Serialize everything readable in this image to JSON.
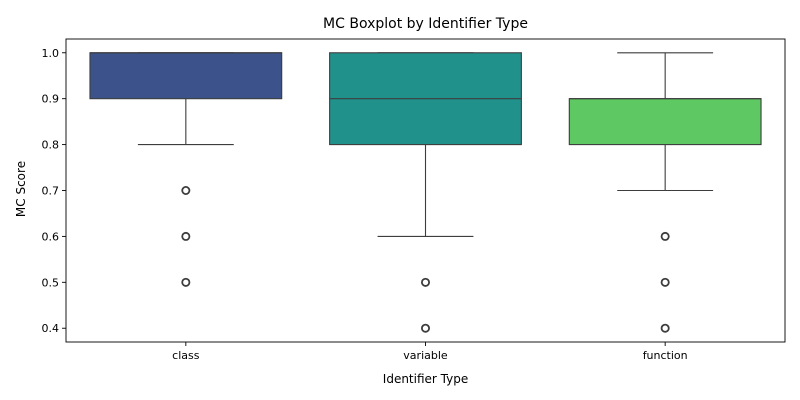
{
  "chart_data": {
    "type": "box",
    "title": "MC Boxplot by Identifier Type",
    "xlabel": "Identifier Type",
    "ylabel": "MC Score",
    "ylim": [
      0.37,
      1.03
    ],
    "yticks": [
      "0.4",
      "0.5",
      "0.6",
      "0.7",
      "0.8",
      "0.9",
      "1.0"
    ],
    "grid": false,
    "legend": "none",
    "categories": [
      "class",
      "variable",
      "function"
    ],
    "boxes": [
      {
        "category": "class",
        "whisker_low": 0.8,
        "q1": 0.9,
        "median": 1.0,
        "q3": 1.0,
        "whisker_high": 1.0,
        "outliers": [
          0.7,
          0.6,
          0.5
        ],
        "color": "#3b528b"
      },
      {
        "category": "variable",
        "whisker_low": 0.6,
        "q1": 0.8,
        "median": 0.9,
        "q3": 1.0,
        "whisker_high": 1.0,
        "outliers": [
          0.5,
          0.4
        ],
        "color": "#21918c"
      },
      {
        "category": "function",
        "whisker_low": 0.7,
        "q1": 0.8,
        "median": 0.9,
        "q3": 0.9,
        "whisker_high": 1.0,
        "outliers": [
          0.6,
          0.5,
          0.4
        ],
        "color": "#5ec962"
      }
    ]
  }
}
